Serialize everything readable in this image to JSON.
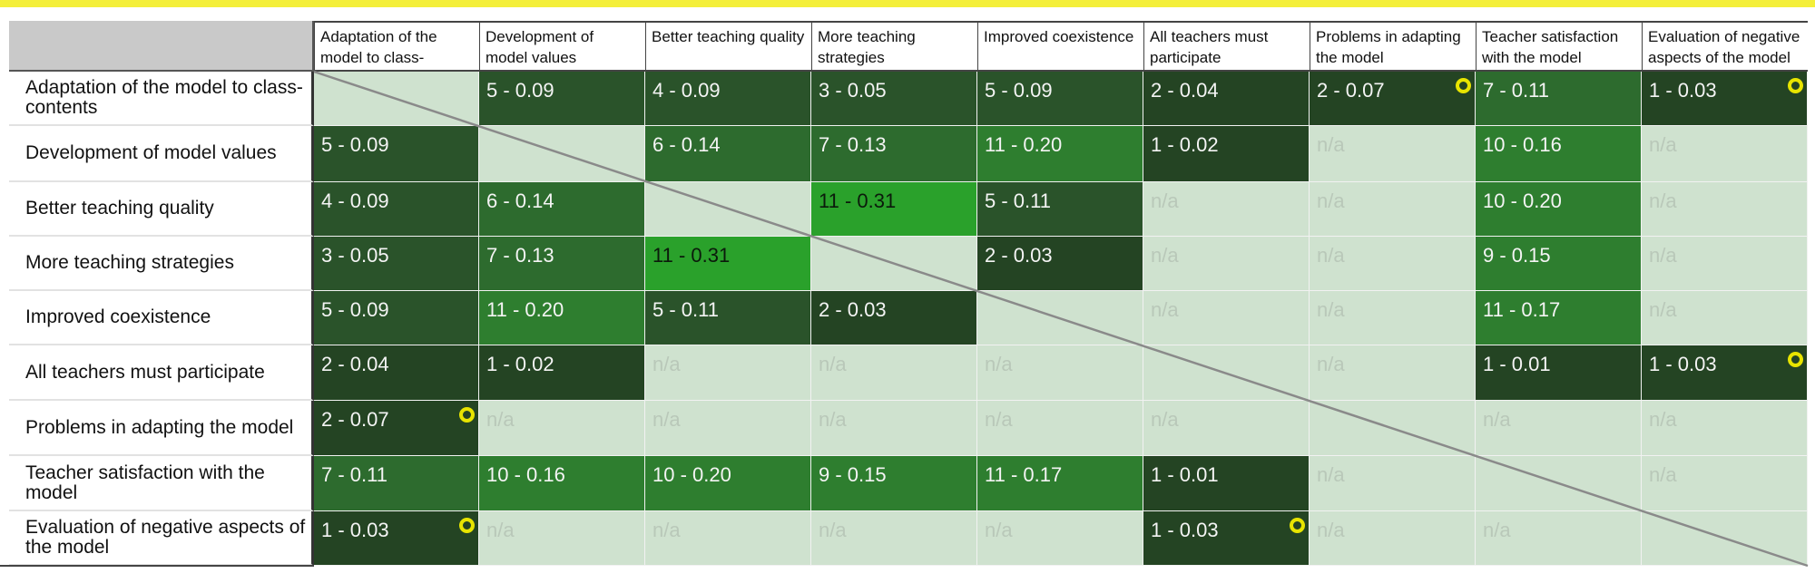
{
  "chart_data": {
    "type": "table",
    "columns": [
      "Adaptation of the model to class-contents",
      "Development of model values",
      "Better teaching quality",
      "More teaching strategies",
      "Improved coexistence",
      "All teachers must participate",
      "Problems in adapting the model",
      "Teacher satisfaction with the model",
      "Evaluation of negative aspects of the model"
    ],
    "rows": [
      "Adaptation of the model to class-contents",
      "Development of model values",
      "Better teaching quality",
      "More teaching strategies",
      "Improved coexistence",
      "All teachers must participate",
      "Problems in adapting the model",
      "Teacher satisfaction with the model",
      "Evaluation of negative aspects of the model"
    ],
    "cells": [
      [
        "",
        "5 - 0.09",
        "4 - 0.09",
        "3 - 0.05",
        "5 - 0.09",
        "2 - 0.04",
        "2 - 0.07",
        "7 - 0.11",
        "1 - 0.03"
      ],
      [
        "5 - 0.09",
        "",
        "6 - 0.14",
        "7 - 0.13",
        "11 - 0.20",
        "1 - 0.02",
        "n/a",
        "10 - 0.16",
        "n/a"
      ],
      [
        "4 - 0.09",
        "6 - 0.14",
        "",
        "11 - 0.31",
        "5 - 0.11",
        "n/a",
        "n/a",
        "10 - 0.20",
        "n/a"
      ],
      [
        "3 - 0.05",
        "7 - 0.13",
        "11 - 0.31",
        "",
        "2 - 0.03",
        "n/a",
        "n/a",
        "9 - 0.15",
        "n/a"
      ],
      [
        "5 - 0.09",
        "11 - 0.20",
        "5 - 0.11",
        "2 - 0.03",
        "",
        "n/a",
        "n/a",
        "11 - 0.17",
        "n/a"
      ],
      [
        "2 - 0.04",
        "1 - 0.02",
        "n/a",
        "n/a",
        "n/a",
        "",
        "n/a",
        "1 - 0.01",
        "1 - 0.03"
      ],
      [
        "2 - 0.07",
        "n/a",
        "n/a",
        "n/a",
        "n/a",
        "n/a",
        "",
        "n/a",
        "n/a"
      ],
      [
        "7 - 0.11",
        "10 - 0.16",
        "10 - 0.20",
        "9 - 0.15",
        "11 - 0.17",
        "1 - 0.01",
        "n/a",
        "",
        "n/a"
      ],
      [
        "1 - 0.03",
        "n/a",
        "n/a",
        "n/a",
        "n/a",
        "1 - 0.03",
        "n/a",
        "n/a",
        ""
      ]
    ],
    "markers": [
      [
        0,
        6
      ],
      [
        0,
        8
      ],
      [
        5,
        8
      ],
      [
        6,
        0
      ],
      [
        8,
        0
      ],
      [
        8,
        5
      ]
    ],
    "colors": {
      "diagonal": "#cfe2cf",
      "na": "#cfe2cf",
      "scale": [
        "#244423",
        "#2a532a",
        "#2d6b2e",
        "#2e7e2f",
        "#2aa12b"
      ],
      "marker": "#e8e400",
      "accent_rule": "#f4ef3a"
    }
  }
}
